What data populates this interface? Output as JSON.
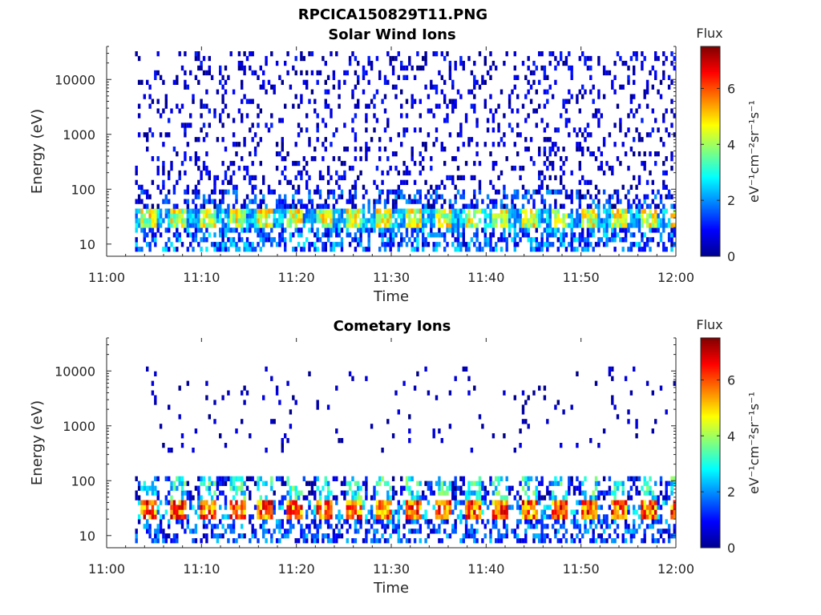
{
  "figure": {
    "filename": "RPCICA150829T11.PNG"
  },
  "chart_data": [
    {
      "type": "heatmap",
      "title": "Solar Wind Ions",
      "xlabel": "Time",
      "ylabel": "Energy (eV)",
      "x_tick_labels": [
        "11:00",
        "11:10",
        "11:20",
        "11:30",
        "11:40",
        "11:50",
        "12:00"
      ],
      "xlim": [
        "11:00",
        "12:00"
      ],
      "y_scale": "log",
      "y_tick_labels": [
        "10",
        "100",
        "1000",
        "10000"
      ],
      "ylim": [
        6,
        40000
      ],
      "data_start": "11:03",
      "colorbar": {
        "title": "Flux",
        "label": "eV⁻¹cm⁻²sr⁻¹s⁻¹",
        "ticks": [
          "0",
          "2",
          "4",
          "6"
        ],
        "range": [
          0,
          7.5
        ],
        "colormap": "jet"
      },
      "bands": [
        {
          "energy": "~30 eV",
          "level": "4-6"
        },
        {
          "energy": "~10-20 eV",
          "level": "1-3"
        },
        {
          "energy": "100-30000 eV",
          "level": "0-1, sparse"
        }
      ]
    },
    {
      "type": "heatmap",
      "title": "Cometary Ions",
      "xlabel": "Time",
      "ylabel": "Energy (eV)",
      "x_tick_labels": [
        "11:00",
        "11:10",
        "11:20",
        "11:30",
        "11:40",
        "11:50",
        "12:00"
      ],
      "xlim": [
        "11:00",
        "12:00"
      ],
      "y_scale": "log",
      "y_tick_labels": [
        "10",
        "100",
        "1000",
        "10000"
      ],
      "ylim": [
        6,
        40000
      ],
      "data_start": "11:03",
      "colorbar": {
        "title": "Flux",
        "label": "eV⁻¹cm⁻²sr⁻¹s⁻¹",
        "ticks": [
          "0",
          "2",
          "4",
          "6"
        ],
        "range": [
          0,
          7.5
        ],
        "colormap": "jet"
      },
      "bands": [
        {
          "energy": "~30 eV",
          "level": "5-7"
        },
        {
          "energy": "~50-100 eV",
          "level": "2-4"
        },
        {
          "energy": "~10 eV",
          "level": "1-3"
        },
        {
          "energy": "500-10000 eV",
          "level": "0-1, very sparse"
        }
      ]
    }
  ]
}
